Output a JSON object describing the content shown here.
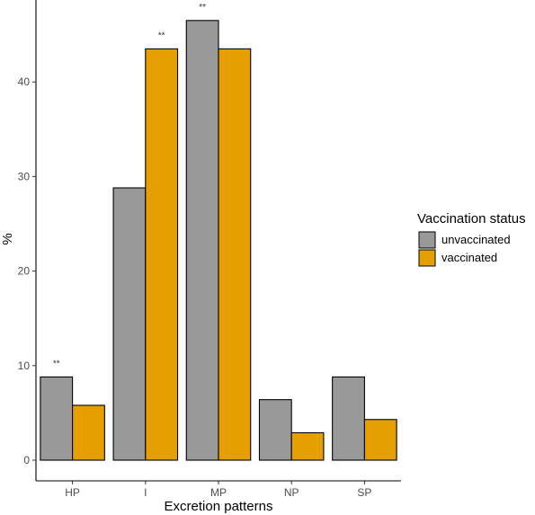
{
  "chart_data": {
    "type": "bar",
    "categories": [
      "HP",
      "I",
      "MP",
      "NP",
      "SP"
    ],
    "series": [
      {
        "name": "unvaccinated",
        "color": "#999999",
        "values": [
          8.8,
          28.8,
          46.5,
          6.4,
          8.8
        ]
      },
      {
        "name": "vaccinated",
        "color": "#E69F00",
        "values": [
          5.8,
          43.5,
          43.5,
          2.9,
          4.3
        ]
      }
    ],
    "title": "",
    "xlabel": "Excretion patterns",
    "ylabel": "%",
    "ylim": [
      0,
      47.5
    ],
    "yticks": [
      0,
      10,
      20,
      30,
      40
    ],
    "grid": false,
    "legend": {
      "title": "Vaccination status",
      "position": "right"
    },
    "annotations": [
      {
        "category": "HP",
        "text": "**"
      },
      {
        "category": "I",
        "text": "**"
      },
      {
        "category": "MP",
        "text": "**"
      }
    ]
  }
}
